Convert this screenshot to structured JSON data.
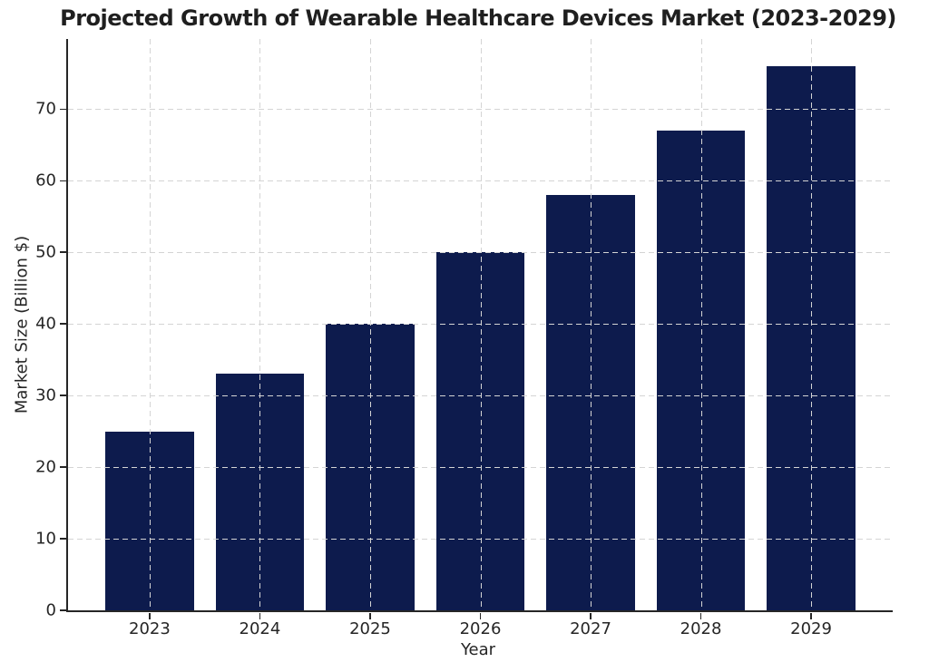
{
  "chart_data": {
    "type": "bar",
    "title": "Projected Growth of Wearable Healthcare Devices Market (2023-2029)",
    "xlabel": "Year",
    "ylabel": "Market Size (Billion $)",
    "categories": [
      "2023",
      "2024",
      "2025",
      "2026",
      "2027",
      "2028",
      "2029"
    ],
    "values": [
      25,
      33,
      40,
      50,
      58,
      67,
      76
    ],
    "ylim": [
      0,
      79.8
    ],
    "yticks": [
      0,
      10,
      20,
      30,
      40,
      50,
      60,
      70
    ],
    "xlim": [
      2022.26,
      2029.74
    ],
    "bar_width_units": 0.8,
    "bar_color": "#0d1b4d",
    "grid_color": "#d4d4d4",
    "grid_style": "dashed, both axes, drawn above bars",
    "spines": "left and bottom only",
    "spine_color": "#262626",
    "text_color": "#262626",
    "legend": "none",
    "background_color": "#ffffff"
  }
}
